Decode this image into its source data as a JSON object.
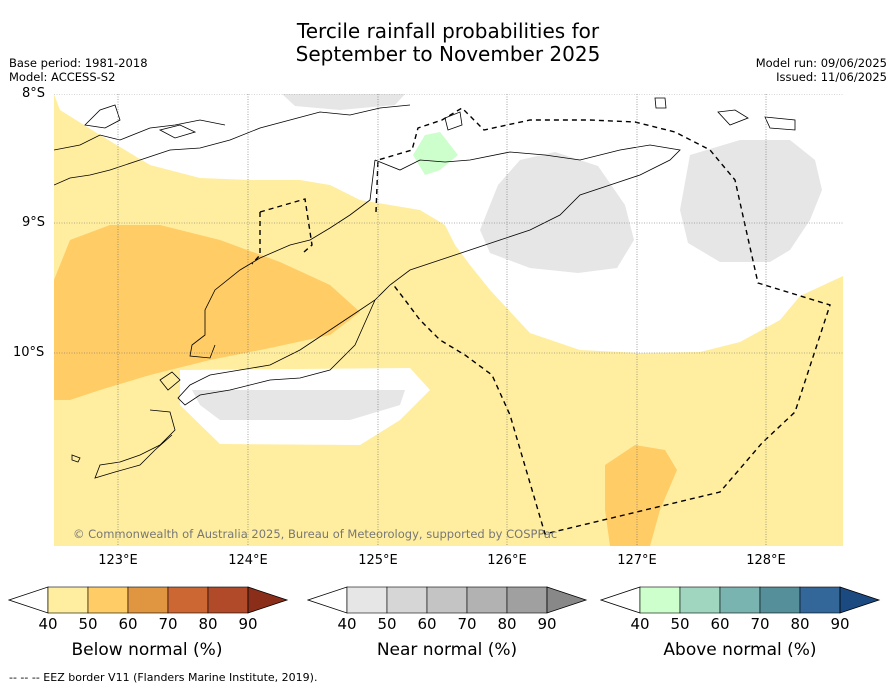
{
  "title_line1": "Tercile rainfall probabilities for",
  "title_line2": "September to November 2025",
  "base_period": "Base period: 1981-2018",
  "model": "Model: ACCESS-S2",
  "model_run": "Model run: 09/06/2025",
  "issued": "Issued: 11/06/2025",
  "lat_labels": [
    "8°S",
    "9°S",
    "10°S"
  ],
  "lon_labels": [
    "123°E",
    "124°E",
    "125°E",
    "126°E",
    "127°E",
    "128°E"
  ],
  "copyright": "© Commonwealth of Australia 2025, Bureau of Meteorology, supported by COSPPac",
  "colorbars": [
    {
      "title": "Below normal (%)",
      "ticks": [
        "40",
        "50",
        "60",
        "70",
        "80",
        "90"
      ],
      "colors": [
        "#ffeea0",
        "#ffcc66",
        "#e09540",
        "#cc6633",
        "#b04a28",
        "#8a2e1a"
      ]
    },
    {
      "title": "Near normal (%)",
      "ticks": [
        "40",
        "50",
        "60",
        "70",
        "80",
        "90"
      ],
      "colors": [
        "#e6e6e6",
        "#d6d6d6",
        "#c4c4c4",
        "#b2b2b2",
        "#a0a0a0",
        "#888888"
      ]
    },
    {
      "title": "Above normal (%)",
      "ticks": [
        "40",
        "50",
        "60",
        "70",
        "80",
        "90"
      ],
      "colors": [
        "#ccffcc",
        "#a0d6c0",
        "#7ab4b0",
        "#55909a",
        "#336699",
        "#1a4a80"
      ]
    }
  ],
  "footnote": "--  --  -- EEZ border V11 (Flanders Marine Institute, 2019).",
  "colors": {
    "below_50": "#ffeea0",
    "below_60": "#ffcc66",
    "near_40": "#e6e6e6",
    "above_40": "#ccffcc"
  }
}
